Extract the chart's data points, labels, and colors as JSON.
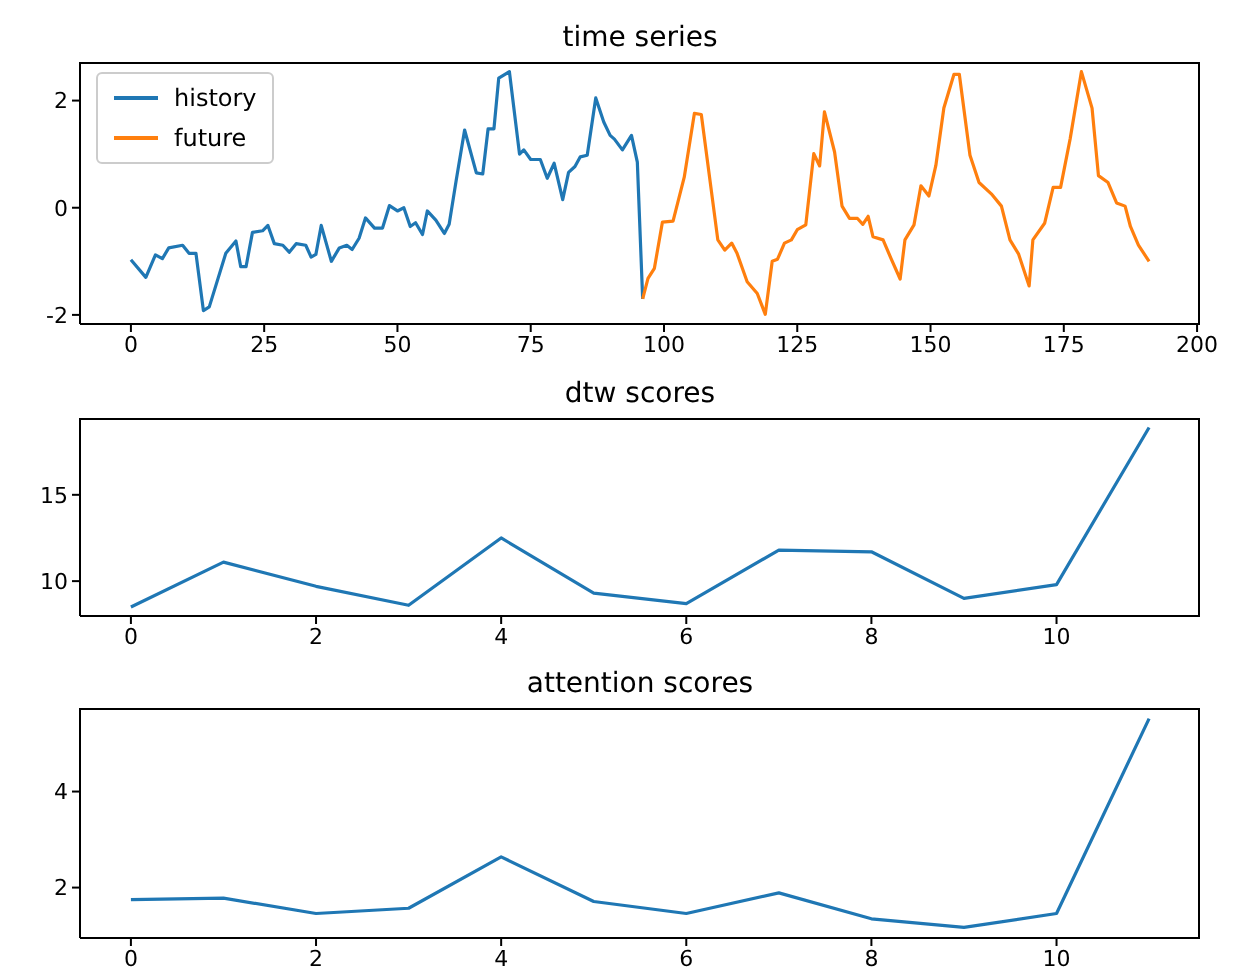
{
  "chart_data": [
    {
      "type": "line",
      "title": "time series",
      "xlim": [
        -9.55,
        200.55
      ],
      "xticks": [
        0,
        25,
        50,
        75,
        100,
        125,
        150,
        175,
        200
      ],
      "ylim": [
        -2.17,
        2.72
      ],
      "yticks": [
        -2,
        0,
        2
      ],
      "legend": "top left",
      "grid": false,
      "series": [
        {
          "name": "history",
          "color": "#1f77b4",
          "x": [
            0,
            2.8,
            4.6,
            5.9,
            7.1,
            9.7,
            10.9,
            12.2,
            13.6,
            14.7,
            17.8,
            19.7,
            20.6,
            21.6,
            22.8,
            24.7,
            25.7,
            26.9,
            28.5,
            29.7,
            31,
            32.8,
            33.8,
            34.7,
            35.7,
            37.6,
            39.1,
            40.5,
            41.5,
            42.8,
            44,
            45.7,
            47.2,
            48.5,
            50,
            51.2,
            52.4,
            53.4,
            54.7,
            55.6,
            57.2,
            58.8,
            59.7,
            61,
            62.6,
            64.8,
            66,
            67,
            68.1,
            69,
            71,
            72.9,
            73.7,
            75,
            76.8,
            78.1,
            79.4,
            81,
            82.1,
            83.3,
            84.3,
            85.6,
            87.2,
            88.7,
            89.9,
            90.7,
            92.2,
            93.9,
            95,
            96
          ],
          "values": [
            -0.97,
            -1.3,
            -0.88,
            -0.95,
            -0.75,
            -0.7,
            -0.85,
            -0.85,
            -1.92,
            -1.85,
            -0.85,
            -0.62,
            -1.1,
            -1.1,
            -0.46,
            -0.43,
            -0.33,
            -0.67,
            -0.7,
            -0.83,
            -0.67,
            -0.7,
            -0.92,
            -0.87,
            -0.33,
            -1.0,
            -0.75,
            -0.7,
            -0.78,
            -0.57,
            -0.19,
            -0.38,
            -0.38,
            0.04,
            -0.06,
            0.0,
            -0.35,
            -0.28,
            -0.5,
            -0.06,
            -0.23,
            -0.48,
            -0.31,
            0.5,
            1.45,
            0.65,
            0.63,
            1.47,
            1.47,
            2.42,
            2.54,
            1.0,
            1.08,
            0.9,
            0.9,
            0.55,
            0.83,
            0.15,
            0.66,
            0.77,
            0.95,
            0.98,
            2.05,
            1.6,
            1.35,
            1.28,
            1.08,
            1.35,
            0.85,
            -1.7
          ]
        },
        {
          "name": "future",
          "color": "#ff7f0e",
          "x": [
            96,
            97,
            98.2,
            99.7,
            101.7,
            103.8,
            105.7,
            107,
            110.1,
            111.4,
            112.7,
            113.7,
            115.6,
            117.5,
            119,
            120.3,
            121.3,
            122.6,
            123.9,
            125,
            126.6,
            128.1,
            129.2,
            130.1,
            132,
            133.4,
            134.8,
            136.3,
            137.3,
            138.3,
            139.2,
            141.1,
            142.6,
            144.3,
            145.2,
            146.9,
            148.2,
            149.7,
            151,
            152.5,
            154.4,
            155.4,
            157.4,
            159.1,
            161.4,
            163.3,
            164.9,
            166.5,
            168.5,
            169.2,
            171.4,
            173,
            174.4,
            176.2,
            178.3,
            180.3,
            181.5,
            183.3,
            184.9,
            186.5,
            187.5,
            189,
            191
          ],
          "values": [
            -1.7,
            -1.32,
            -1.13,
            -0.27,
            -0.25,
            0.57,
            1.76,
            1.74,
            -0.6,
            -0.79,
            -0.66,
            -0.85,
            -1.38,
            -1.6,
            -1.99,
            -1.0,
            -0.96,
            -0.66,
            -0.6,
            -0.41,
            -0.32,
            1.01,
            0.78,
            1.79,
            1.04,
            0.03,
            -0.2,
            -0.2,
            -0.31,
            -0.16,
            -0.54,
            -0.6,
            -0.95,
            -1.33,
            -0.6,
            -0.32,
            0.41,
            0.22,
            0.79,
            1.86,
            2.49,
            2.49,
            0.98,
            0.47,
            0.26,
            0.03,
            -0.6,
            -0.86,
            -1.46,
            -0.6,
            -0.29,
            0.38,
            0.38,
            1.29,
            2.54,
            1.86,
            0.6,
            0.47,
            0.09,
            0.03,
            -0.35,
            -0.7,
            -1.0
          ]
        }
      ]
    },
    {
      "type": "line",
      "title": "dtw scores",
      "xlim": [
        -0.55,
        11.55
      ],
      "xticks": [
        0,
        2,
        4,
        6,
        8,
        10
      ],
      "ylim": [
        7.98,
        19.45
      ],
      "yticks": [
        10,
        15
      ],
      "grid": false,
      "x": [
        0,
        1,
        2,
        3,
        4,
        5,
        6,
        7,
        8,
        9,
        10,
        11
      ],
      "series": [
        {
          "color": "#1f77b4",
          "values": [
            8.5,
            11.1,
            9.7,
            8.6,
            12.5,
            9.3,
            8.7,
            11.8,
            11.7,
            9.0,
            9.8,
            18.9
          ]
        }
      ]
    },
    {
      "type": "line",
      "title": "attention scores",
      "xlim": [
        -0.55,
        11.55
      ],
      "xticks": [
        0,
        2,
        4,
        6,
        8,
        10
      ],
      "ylim": [
        0.95,
        5.74
      ],
      "yticks": [
        2,
        4
      ],
      "grid": false,
      "x": [
        0,
        1,
        2,
        3,
        4,
        5,
        6,
        7,
        8,
        9,
        10,
        11
      ],
      "series": [
        {
          "color": "#1f77b4",
          "values": [
            1.75,
            1.78,
            1.46,
            1.57,
            2.64,
            1.71,
            1.46,
            1.89,
            1.35,
            1.17,
            1.46,
            5.52
          ]
        }
      ]
    }
  ]
}
